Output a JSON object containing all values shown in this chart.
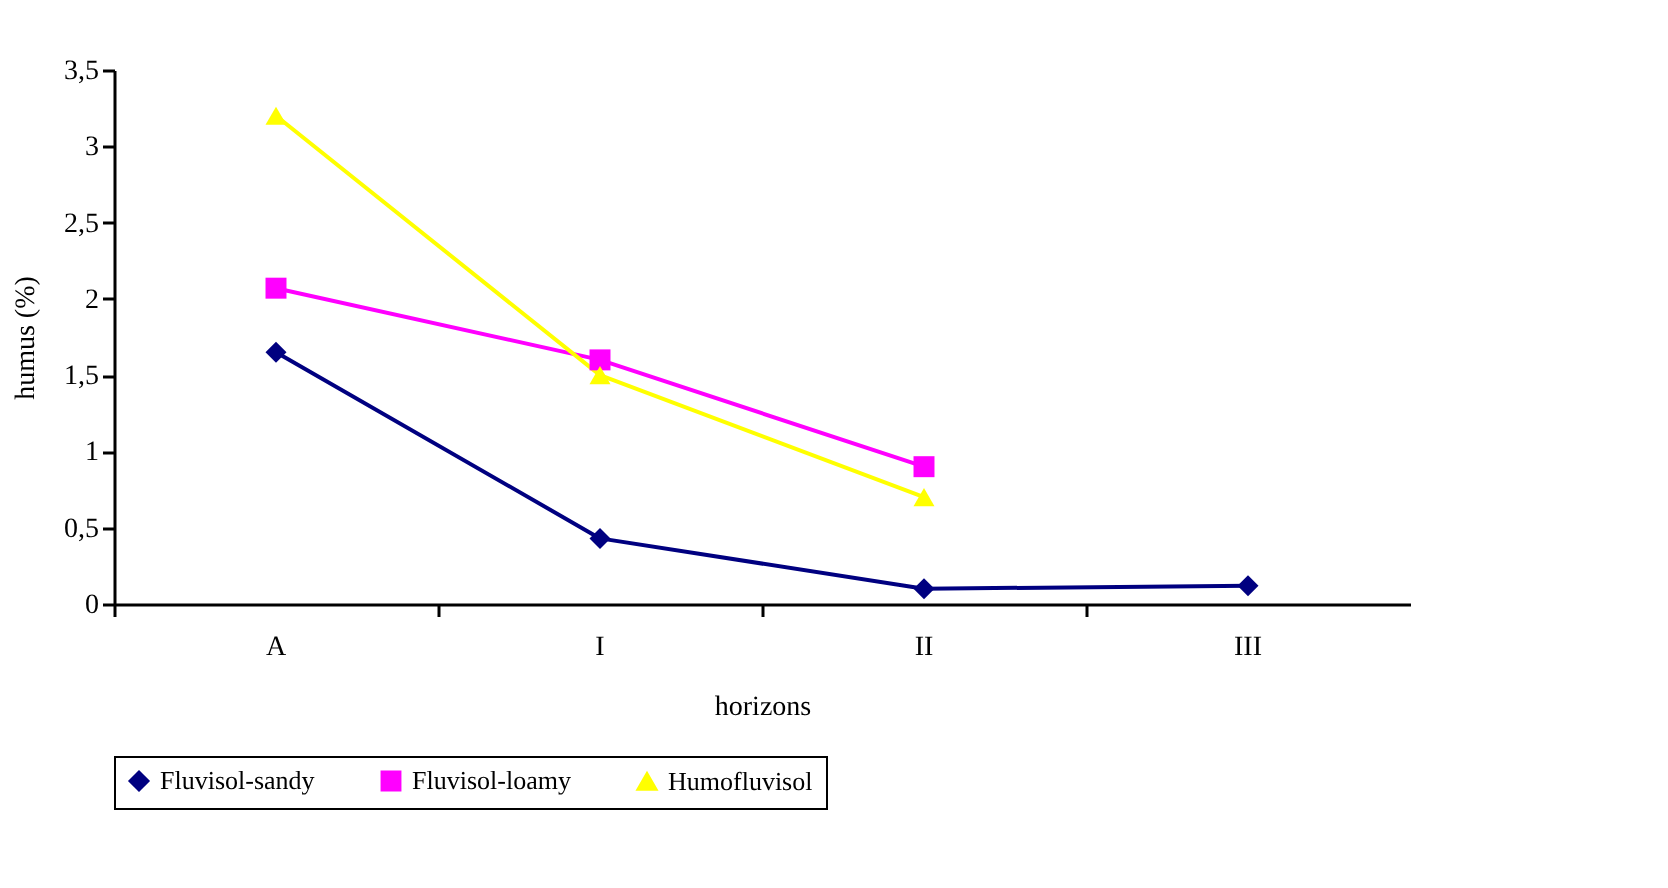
{
  "chart_data": {
    "type": "line",
    "xlabel": "horizons",
    "ylabel": "humus (%)",
    "categories": [
      "A",
      "I",
      "II",
      "III"
    ],
    "series": [
      {
        "name": "Fluvisol-sandy",
        "color": "#000080",
        "values": [
          1.65,
          0.43,
          0.1,
          0.12
        ],
        "marker": "diamond"
      },
      {
        "name": "Fluvisol-loamy",
        "color": "#ff00ff",
        "values": [
          2.07,
          1.6,
          0.9,
          null
        ],
        "marker": "square"
      },
      {
        "name": "Humofluvisol",
        "color": "#ffff00",
        "values": [
          3.2,
          1.5,
          0.7,
          null
        ],
        "marker": "triangle"
      }
    ],
    "ylim": [
      0,
      3.5
    ],
    "yticks": [
      0,
      {
        "value": 0.5,
        "label": "0,5"
      },
      1,
      {
        "value": 1.5,
        "label": "1,5"
      },
      2,
      {
        "value": 2.5,
        "label": "2,5"
      },
      3,
      {
        "value": 3.5,
        "label": "3,5"
      }
    ],
    "grid": false,
    "legend": "bottom",
    "line_style": "solid"
  }
}
